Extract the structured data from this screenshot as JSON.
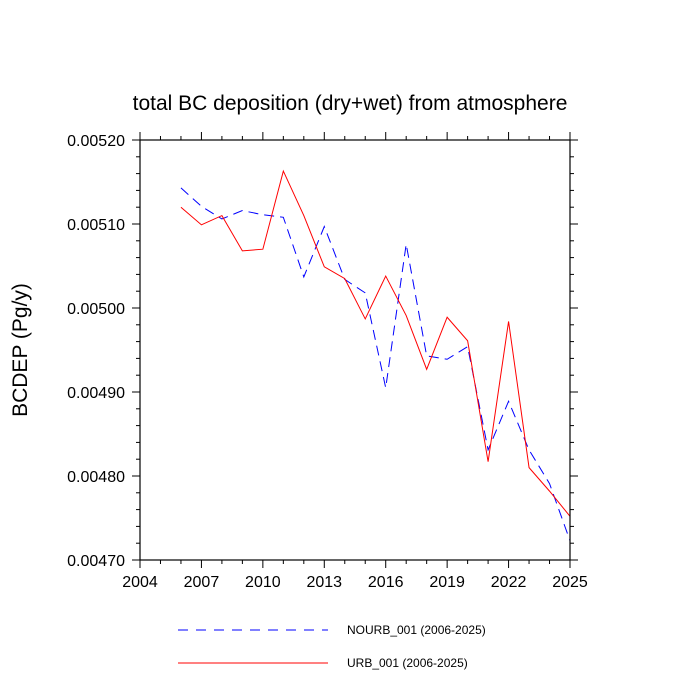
{
  "chart_data": {
    "type": "line",
    "title": "total BC deposition (dry+wet) from atmosphere",
    "xlabel": "",
    "ylabel": "BCDEP  (Pg/y)",
    "xlim": [
      2004,
      2025
    ],
    "ylim": [
      0.0047,
      0.0052
    ],
    "x_ticks": [
      2004,
      2007,
      2010,
      2013,
      2016,
      2019,
      2022,
      2025
    ],
    "y_ticks": [
      "0.00470",
      "0.00480",
      "0.00490",
      "0.00500",
      "0.00510",
      "0.00520"
    ],
    "x": [
      2006,
      2007,
      2008,
      2009,
      2010,
      2011,
      2012,
      2013,
      2014,
      2015,
      2016,
      2017,
      2018,
      2019,
      2020,
      2021,
      2022,
      2023,
      2024,
      2025
    ],
    "series": [
      {
        "name": "NOURB_001 (2006-2025)",
        "color": "#0000ff",
        "dash": "dashed",
        "values": [
          0.005143,
          0.005121,
          0.005106,
          0.005116,
          0.005111,
          0.005108,
          0.005037,
          0.005097,
          0.005034,
          0.005018,
          0.004905,
          0.005076,
          0.004943,
          0.004939,
          0.004954,
          0.004831,
          0.004889,
          0.004831,
          0.004791,
          0.004723
        ]
      },
      {
        "name": "URB_001 (2006-2025)",
        "color": "#ff0000",
        "dash": "solid",
        "values": [
          0.00512,
          0.005099,
          0.00511,
          0.005068,
          0.00507,
          0.005163,
          0.00511,
          0.005049,
          0.005035,
          0.004987,
          0.005038,
          0.004991,
          0.004927,
          0.004989,
          0.004961,
          0.004817,
          0.004984,
          0.00481,
          0.004782,
          0.004752
        ]
      }
    ],
    "legend": "below"
  }
}
